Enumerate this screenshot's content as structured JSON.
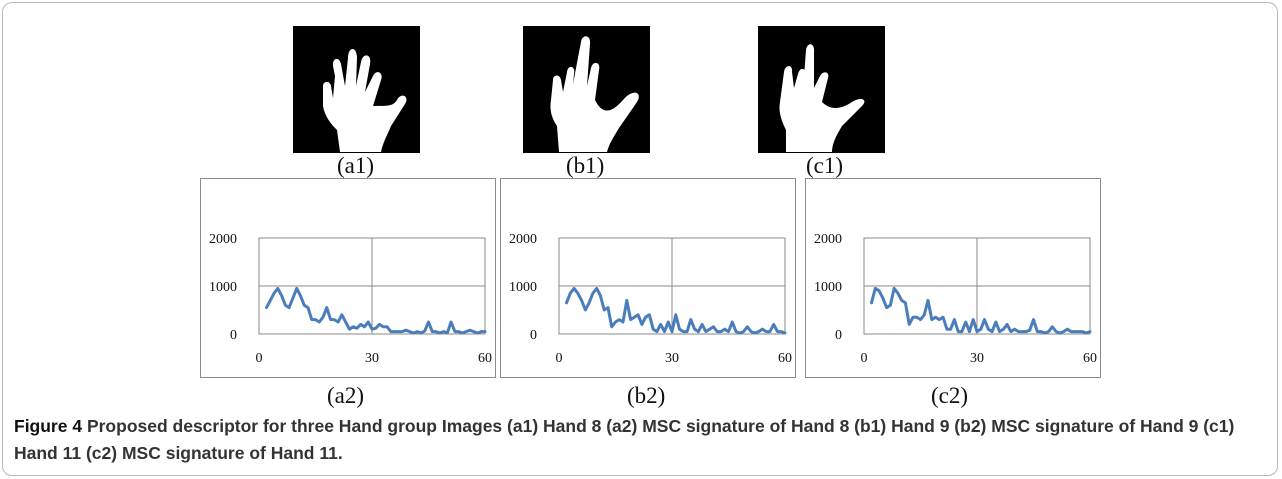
{
  "figure": {
    "panels": [
      {
        "image_label": "(a1)",
        "chart_label": "(a2)"
      },
      {
        "image_label": "(b1)",
        "chart_label": "(b2)"
      },
      {
        "image_label": "(c1)",
        "chart_label": "(c2)"
      }
    ],
    "caption": {
      "title": "Figure 4",
      "text": "Proposed descriptor for three Hand group Images (a1) Hand 8 (a2) MSC signature of Hand 8 (b1) Hand 9 (b2) MSC signature of Hand 9 (c1) Hand 11 (c2) MSC signature of Hand 11."
    }
  },
  "chart_data": [
    {
      "type": "line",
      "xlim": [
        0,
        60
      ],
      "ylim": [
        0,
        2000
      ],
      "xticks": [
        0,
        30,
        60
      ],
      "yticks": [
        0,
        1000,
        2000
      ],
      "grid": true,
      "color": "#4a7ebb",
      "x": [
        2,
        3,
        4,
        5,
        6,
        7,
        8,
        9,
        10,
        11,
        12,
        13,
        14,
        15,
        16,
        17,
        18,
        19,
        20,
        21,
        22,
        23,
        24,
        25,
        26,
        27,
        28,
        29,
        30,
        31,
        32,
        33,
        34,
        35,
        36,
        37,
        38,
        39,
        40,
        41,
        42,
        43,
        44,
        45,
        46,
        47,
        48,
        49,
        50,
        51,
        52,
        53,
        54,
        55,
        56,
        57,
        58,
        59,
        60
      ],
      "y": [
        550,
        700,
        850,
        950,
        800,
        600,
        550,
        750,
        950,
        800,
        600,
        550,
        300,
        300,
        250,
        350,
        550,
        300,
        300,
        250,
        400,
        250,
        100,
        150,
        120,
        200,
        150,
        250,
        100,
        120,
        200,
        150,
        150,
        50,
        50,
        50,
        50,
        80,
        50,
        20,
        50,
        20,
        60,
        250,
        50,
        50,
        20,
        50,
        20,
        250,
        50,
        50,
        20,
        50,
        80,
        50,
        20,
        50,
        50
      ]
    },
    {
      "type": "line",
      "xlim": [
        0,
        60
      ],
      "ylim": [
        0,
        2000
      ],
      "xticks": [
        0,
        30,
        60
      ],
      "yticks": [
        0,
        1000,
        2000
      ],
      "grid": true,
      "color": "#4a7ebb",
      "x": [
        2,
        3,
        4,
        5,
        6,
        7,
        8,
        9,
        10,
        11,
        12,
        13,
        14,
        15,
        16,
        17,
        18,
        19,
        20,
        21,
        22,
        23,
        24,
        25,
        26,
        27,
        28,
        29,
        30,
        31,
        32,
        33,
        34,
        35,
        36,
        37,
        38,
        39,
        40,
        41,
        42,
        43,
        44,
        45,
        46,
        47,
        48,
        49,
        50,
        51,
        52,
        53,
        54,
        55,
        56,
        57,
        58,
        59,
        60
      ],
      "y": [
        650,
        850,
        950,
        850,
        700,
        500,
        650,
        850,
        950,
        800,
        500,
        550,
        150,
        250,
        300,
        250,
        700,
        300,
        350,
        400,
        200,
        350,
        400,
        100,
        50,
        200,
        50,
        250,
        50,
        400,
        100,
        50,
        50,
        300,
        100,
        50,
        200,
        50,
        100,
        150,
        50,
        50,
        100,
        50,
        250,
        50,
        20,
        50,
        150,
        50,
        20,
        50,
        100,
        50,
        50,
        200,
        50,
        50,
        20
      ]
    },
    {
      "type": "line",
      "xlim": [
        0,
        60
      ],
      "ylim": [
        0,
        2000
      ],
      "xticks": [
        0,
        30,
        60
      ],
      "yticks": [
        0,
        1000,
        2000
      ],
      "grid": true,
      "color": "#4a7ebb",
      "x": [
        2,
        3,
        4,
        5,
        6,
        7,
        8,
        9,
        10,
        11,
        12,
        13,
        14,
        15,
        16,
        17,
        18,
        19,
        20,
        21,
        22,
        23,
        24,
        25,
        26,
        27,
        28,
        29,
        30,
        31,
        32,
        33,
        34,
        35,
        36,
        37,
        38,
        39,
        40,
        41,
        42,
        43,
        44,
        45,
        46,
        47,
        48,
        49,
        50,
        51,
        52,
        53,
        54,
        55,
        56,
        57,
        58,
        59,
        60
      ],
      "y": [
        650,
        950,
        900,
        750,
        550,
        600,
        950,
        850,
        700,
        650,
        200,
        350,
        350,
        300,
        400,
        700,
        300,
        350,
        300,
        350,
        100,
        100,
        300,
        50,
        50,
        250,
        50,
        300,
        50,
        100,
        300,
        100,
        50,
        250,
        50,
        100,
        200,
        50,
        100,
        50,
        50,
        50,
        80,
        300,
        50,
        50,
        20,
        50,
        150,
        50,
        20,
        50,
        100,
        50,
        50,
        50,
        50,
        20,
        50
      ]
    }
  ]
}
